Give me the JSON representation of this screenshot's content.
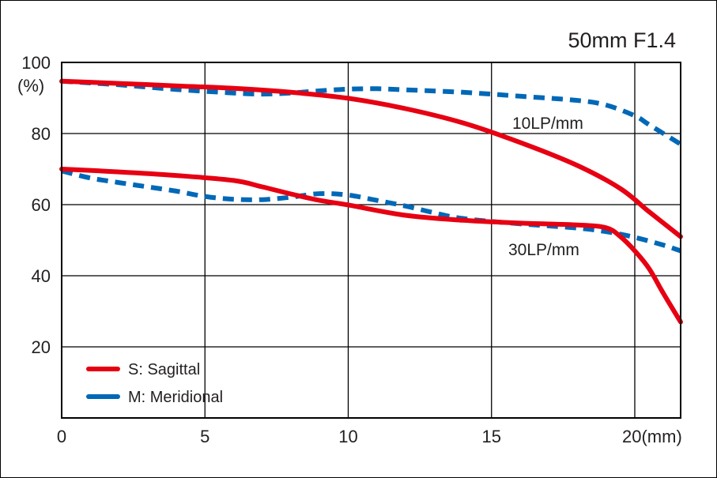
{
  "chart_data": {
    "type": "line",
    "title": "50mm F1.4",
    "ylabel": "(%)",
    "xlabel_suffix": "(mm)",
    "xlim": [
      0,
      21.6
    ],
    "ylim": [
      0,
      100
    ],
    "x_ticks": [
      {
        "value": 0,
        "label": "0"
      },
      {
        "value": 5,
        "label": "5"
      },
      {
        "value": 10,
        "label": "10"
      },
      {
        "value": 15,
        "label": "15"
      },
      {
        "value": 20,
        "label": "20(mm)"
      }
    ],
    "y_ticks": [
      {
        "value": 100,
        "label": "100"
      },
      {
        "value": 80,
        "label": "80"
      },
      {
        "value": 60,
        "label": "60"
      },
      {
        "value": 40,
        "label": "40"
      },
      {
        "value": 20,
        "label": "20"
      }
    ],
    "grid": true,
    "legend": {
      "placement": "bottom-left",
      "entries": [
        {
          "label": "S: Sagittal",
          "style": "solid",
          "color": "#e60012"
        },
        {
          "label": "M: Meridional",
          "style": "dashed",
          "color": "#0068b7"
        }
      ]
    },
    "annotations": [
      "10LP/mm",
      "30LP/mm"
    ],
    "series": [
      {
        "group": "10LP/mm",
        "kind": "sagittal",
        "color": "#e60012",
        "style": "solid",
        "x": [
          0,
          2,
          4,
          6,
          8,
          10,
          12,
          14,
          16,
          18,
          19.5,
          20.5,
          21.6
        ],
        "y": [
          94.7,
          94.1,
          93.4,
          92.7,
          91.6,
          89.9,
          87.0,
          83.0,
          77.5,
          71.0,
          64.5,
          58.0,
          51.0
        ]
      },
      {
        "group": "10LP/mm",
        "kind": "meridional",
        "color": "#0068b7",
        "style": "dashed",
        "x": [
          0,
          2,
          4,
          6,
          7,
          8,
          9,
          10,
          11,
          12,
          14,
          16,
          18,
          19,
          20,
          20.5,
          21.6
        ],
        "y": [
          94.7,
          93.7,
          92.4,
          91.4,
          91.1,
          91.4,
          92.0,
          92.5,
          92.6,
          92.3,
          91.6,
          90.5,
          89.3,
          88.0,
          85.0,
          82.5,
          77.0
        ]
      },
      {
        "group": "30LP/mm",
        "kind": "sagittal",
        "color": "#e60012",
        "style": "solid",
        "x": [
          0,
          2,
          4,
          6,
          7,
          8,
          9,
          10,
          12,
          14,
          16,
          18,
          19,
          19.5,
          20,
          20.5,
          21,
          21.6
        ],
        "y": [
          70.0,
          69.2,
          68.2,
          66.8,
          65.0,
          63.0,
          61.2,
          59.9,
          57.0,
          55.6,
          54.8,
          54.3,
          53.5,
          51.0,
          47.0,
          42.0,
          35.0,
          27.0
        ]
      },
      {
        "group": "30LP/mm",
        "kind": "meridional",
        "color": "#0068b7",
        "style": "dashed",
        "x": [
          0,
          1,
          2,
          3,
          4,
          5,
          6,
          7,
          8,
          9,
          10,
          11,
          12,
          13,
          14,
          16,
          18,
          19,
          20,
          21,
          21.6
        ],
        "y": [
          69.5,
          67.5,
          66.2,
          65.0,
          63.8,
          62.3,
          61.5,
          61.4,
          62.1,
          63.1,
          62.7,
          61.2,
          59.6,
          57.7,
          56.1,
          54.6,
          53.4,
          52.4,
          50.8,
          48.6,
          47.0
        ]
      }
    ]
  }
}
